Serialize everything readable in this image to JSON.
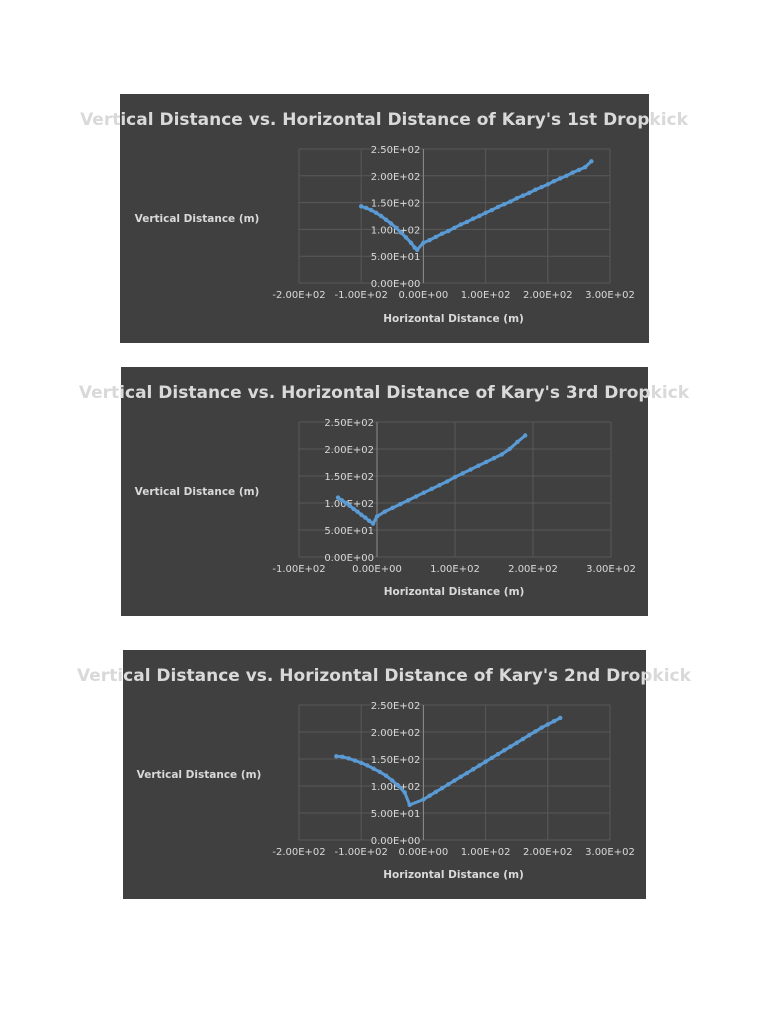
{
  "chart_data": [
    {
      "type": "scatter",
      "title": "Vertical Distance vs. Horizontal Distance of Kary's 1st Dropkick",
      "xlabel": "Horizontal Distance (m)",
      "ylabel": "Vertical Distance (m)",
      "xlim": [
        -200,
        300
      ],
      "ylim": [
        0,
        250
      ],
      "x_ticks": [
        -200,
        -100,
        0,
        100,
        200,
        300
      ],
      "y_ticks": [
        0,
        50,
        100,
        150,
        200,
        250
      ],
      "x_tick_labels": [
        "-2.00E+02",
        "-1.00E+02",
        "0.00E+00",
        "1.00E+02",
        "2.00E+02",
        "3.00E+02"
      ],
      "y_tick_labels": [
        "0.00E+00",
        "5.00E+01",
        "1.00E+02",
        "1.50E+02",
        "2.00E+02",
        "2.50E+02"
      ],
      "grid": true,
      "series_color": "#5b9bd5",
      "series": [
        {
          "x": [
            -100,
            -92,
            -84,
            -76,
            -68,
            -60,
            -52,
            -44,
            -36,
            -28,
            -20,
            -14,
            -10,
            0,
            10,
            20,
            30,
            40,
            50,
            60,
            70,
            80,
            90,
            100,
            110,
            120,
            130,
            140,
            150,
            160,
            170,
            180,
            190,
            200,
            210,
            220,
            230,
            240,
            250,
            260,
            270
          ],
          "y": [
            143,
            140,
            136,
            131,
            125,
            118,
            111,
            103,
            94,
            85,
            75,
            66,
            62,
            75,
            80,
            86,
            92,
            97,
            103,
            109,
            114,
            120,
            125,
            131,
            136,
            142,
            147,
            152,
            158,
            163,
            168,
            174,
            179,
            184,
            190,
            195,
            200,
            206,
            211,
            216,
            227
          ]
        }
      ]
    },
    {
      "type": "scatter",
      "title": "Vertical Distance vs. Horizontal Distance of Kary's 3rd Dropkick",
      "xlabel": "Horizontal Distance (m)",
      "ylabel": "Vertical Distance (m)",
      "xlim": [
        -100,
        300
      ],
      "ylim": [
        0,
        250
      ],
      "x_ticks": [
        -100,
        0,
        100,
        200,
        300
      ],
      "y_ticks": [
        0,
        50,
        100,
        150,
        200,
        250
      ],
      "x_tick_labels": [
        "-1.00E+02",
        "0.00E+00",
        "1.00E+02",
        "2.00E+02",
        "3.00E+02"
      ],
      "y_tick_labels": [
        "0.00E+00",
        "5.00E+01",
        "1.00E+02",
        "1.50E+02",
        "2.00E+02",
        "2.50E+02"
      ],
      "grid": true,
      "series_color": "#5b9bd5",
      "series": [
        {
          "x": [
            -50,
            -45,
            -40,
            -35,
            -30,
            -25,
            -20,
            -15,
            -10,
            -5,
            0,
            10,
            20,
            30,
            40,
            50,
            60,
            70,
            80,
            90,
            100,
            110,
            120,
            130,
            140,
            150,
            160,
            170,
            180,
            190
          ],
          "y": [
            110,
            105,
            100,
            95,
            89,
            84,
            78,
            73,
            67,
            62,
            75,
            84,
            91,
            98,
            105,
            112,
            119,
            126,
            133,
            140,
            148,
            155,
            162,
            169,
            176,
            183,
            190,
            200,
            213,
            225
          ]
        }
      ]
    },
    {
      "type": "scatter",
      "title": "Vertical Distance vs. Horizontal Distance of Kary's 2nd Dropkick",
      "xlabel": "Horizontal Distance (m)",
      "ylabel": "Vertical Distance (m)",
      "xlim": [
        -200,
        300
      ],
      "ylim": [
        0,
        250
      ],
      "x_ticks": [
        -200,
        -100,
        0,
        100,
        200,
        300
      ],
      "y_ticks": [
        0,
        50,
        100,
        150,
        200,
        250
      ],
      "x_tick_labels": [
        "-2.00E+02",
        "-1.00E+02",
        "0.00E+00",
        "1.00E+02",
        "2.00E+02",
        "3.00E+02"
      ],
      "y_tick_labels": [
        "0.00E+00",
        "5.00E+01",
        "1.00E+02",
        "1.50E+02",
        "2.00E+02",
        "2.50E+02"
      ],
      "grid": true,
      "series_color": "#5b9bd5",
      "series": [
        {
          "x": [
            -140,
            -130,
            -120,
            -110,
            -100,
            -90,
            -80,
            -70,
            -60,
            -50,
            -40,
            -30,
            -22,
            0,
            10,
            20,
            30,
            40,
            50,
            60,
            70,
            80,
            90,
            100,
            110,
            120,
            130,
            140,
            150,
            160,
            170,
            180,
            190,
            200,
            210,
            220
          ],
          "y": [
            155,
            154,
            151,
            147,
            143,
            138,
            132,
            126,
            119,
            110,
            100,
            88,
            65,
            75,
            82,
            89,
            96,
            103,
            110,
            117,
            124,
            131,
            138,
            145,
            152,
            159,
            166,
            173,
            180,
            187,
            194,
            201,
            208,
            214,
            220,
            226
          ]
        }
      ]
    }
  ]
}
